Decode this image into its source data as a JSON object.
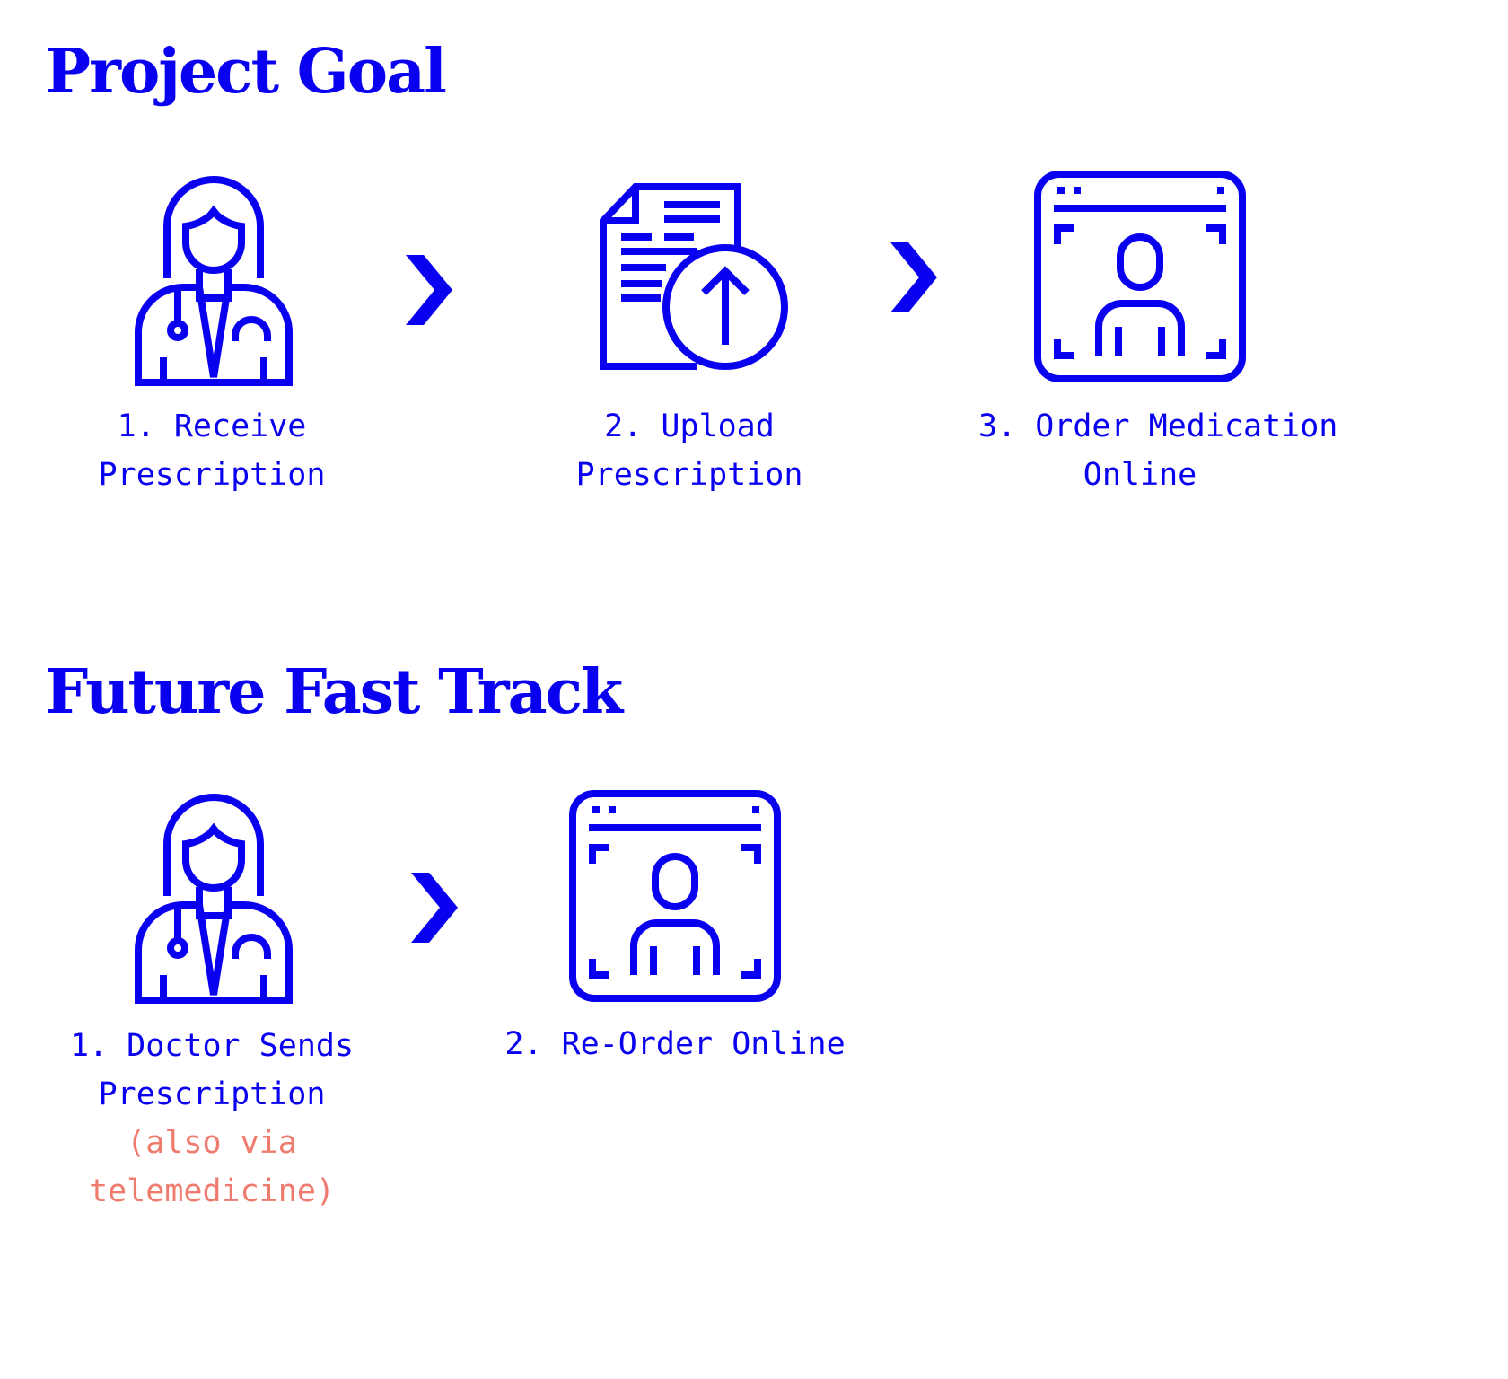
{
  "colors": {
    "accent": "#0a00f0",
    "note": "#ef7b6e",
    "background": "#ffffff"
  },
  "project_goal": {
    "title": "Project Goal",
    "steps": [
      {
        "icon": "doctor-icon",
        "lines": [
          "1. Receive",
          "Prescription"
        ]
      },
      {
        "icon": "document-upload-icon",
        "lines": [
          "2. Upload",
          "Prescription"
        ]
      },
      {
        "icon": "browser-profile-icon",
        "lines": [
          "3. Order Medication",
          "Online"
        ]
      }
    ]
  },
  "future_fast_track": {
    "title": "Future Fast Track",
    "steps": [
      {
        "icon": "doctor-icon",
        "lines": [
          "1. Doctor Sends",
          "Prescription"
        ],
        "note_lines": [
          "(also via",
          "telemedicine)"
        ]
      },
      {
        "icon": "browser-profile-icon",
        "lines": [
          "2. Re-Order Online"
        ]
      }
    ]
  }
}
